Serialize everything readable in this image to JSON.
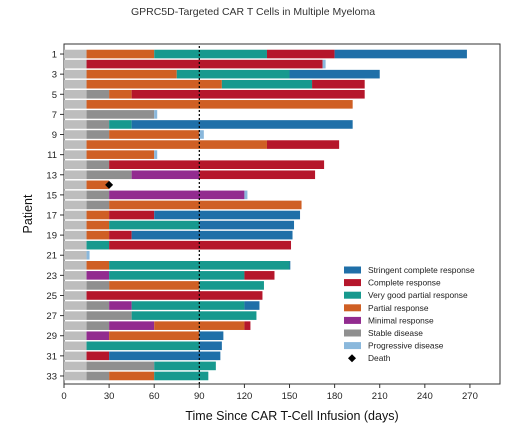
{
  "title": "GPRC5D-Targeted CAR T Cells in Multiple Myeloma",
  "chart_data": {
    "type": "bar",
    "orientation": "horizontal-swimmer",
    "xlabel": "Time Since CAR T-Cell Infusion (days)",
    "ylabel": "Patient",
    "xlim": [
      0,
      290
    ],
    "xticks": [
      0,
      30,
      60,
      90,
      120,
      150,
      180,
      210,
      240,
      270
    ],
    "reference_line": 90,
    "ytick_labels": [
      "1",
      "3",
      "5",
      "7",
      "9",
      "11",
      "13",
      "15",
      "17",
      "19",
      "21",
      "23",
      "25",
      "27",
      "29",
      "31",
      "33"
    ],
    "legend": {
      "placement": "bottom-right",
      "entries": [
        {
          "key": "scr",
          "label": "Stringent complete response"
        },
        {
          "key": "cr",
          "label": "Complete response"
        },
        {
          "key": "vgpr",
          "label": "Very good partial response"
        },
        {
          "key": "pr",
          "label": "Partial response"
        },
        {
          "key": "mr",
          "label": "Minimal response"
        },
        {
          "key": "sd",
          "label": "Stable disease"
        },
        {
          "key": "pd",
          "label": "Progressive disease"
        },
        {
          "key": "death",
          "label": "Death"
        }
      ]
    },
    "colors": {
      "scr": "#1f6fa8",
      "cr": "#b5162b",
      "vgpr": "#17998e",
      "pr": "#cf5f24",
      "mr": "#922b8f",
      "sd": "#8f8f8f",
      "pd": "#8ab8dc",
      "pre": "#bdbdbd",
      "death": "#000000"
    },
    "patients": [
      {
        "id": 1,
        "segments": [
          [
            "pre",
            0,
            15
          ],
          [
            "pr",
            15,
            60
          ],
          [
            "vgpr",
            60,
            135
          ],
          [
            "cr",
            135,
            180
          ],
          [
            "scr",
            180,
            268
          ]
        ]
      },
      {
        "id": 2,
        "segments": [
          [
            "pre",
            0,
            15
          ],
          [
            "cr",
            15,
            172
          ],
          [
            "pd",
            172,
            174
          ]
        ]
      },
      {
        "id": 3,
        "segments": [
          [
            "pre",
            0,
            15
          ],
          [
            "pr",
            15,
            75
          ],
          [
            "vgpr",
            75,
            150
          ],
          [
            "scr",
            150,
            210
          ]
        ]
      },
      {
        "id": 4,
        "segments": [
          [
            "pre",
            0,
            15
          ],
          [
            "pr",
            15,
            105
          ],
          [
            "vgpr",
            105,
            165
          ],
          [
            "cr",
            165,
            200
          ]
        ]
      },
      {
        "id": 5,
        "segments": [
          [
            "pre",
            0,
            15
          ],
          [
            "sd",
            15,
            30
          ],
          [
            "pr",
            30,
            45
          ],
          [
            "cr",
            45,
            200
          ]
        ]
      },
      {
        "id": 6,
        "segments": [
          [
            "pre",
            0,
            15
          ],
          [
            "pr",
            15,
            192
          ]
        ]
      },
      {
        "id": 7,
        "segments": [
          [
            "pre",
            0,
            15
          ],
          [
            "sd",
            15,
            60
          ],
          [
            "pd",
            60,
            62
          ]
        ]
      },
      {
        "id": 8,
        "segments": [
          [
            "pre",
            0,
            15
          ],
          [
            "sd",
            15,
            30
          ],
          [
            "vgpr",
            30,
            45
          ],
          [
            "scr",
            45,
            192
          ]
        ]
      },
      {
        "id": 9,
        "segments": [
          [
            "pre",
            0,
            15
          ],
          [
            "sd",
            15,
            30
          ],
          [
            "pr",
            30,
            90
          ],
          [
            "pd",
            90,
            93
          ]
        ]
      },
      {
        "id": 10,
        "segments": [
          [
            "pre",
            0,
            15
          ],
          [
            "pr",
            15,
            135
          ],
          [
            "cr",
            135,
            183
          ]
        ]
      },
      {
        "id": 11,
        "segments": [
          [
            "pre",
            0,
            15
          ],
          [
            "pr",
            15,
            60
          ],
          [
            "pd",
            60,
            62
          ]
        ]
      },
      {
        "id": 12,
        "segments": [
          [
            "pre",
            0,
            15
          ],
          [
            "sd",
            15,
            30
          ],
          [
            "cr",
            30,
            173
          ]
        ]
      },
      {
        "id": 13,
        "segments": [
          [
            "pre",
            0,
            15
          ],
          [
            "sd",
            15,
            45
          ],
          [
            "mr",
            45,
            90
          ],
          [
            "cr",
            90,
            167
          ]
        ]
      },
      {
        "id": 14,
        "segments": [
          [
            "pre",
            0,
            15
          ],
          [
            "pr",
            15,
            30
          ]
        ],
        "death": 30
      },
      {
        "id": 15,
        "segments": [
          [
            "pre",
            0,
            15
          ],
          [
            "sd",
            15,
            30
          ],
          [
            "mr",
            30,
            120
          ],
          [
            "pd",
            120,
            122
          ]
        ]
      },
      {
        "id": 16,
        "segments": [
          [
            "pre",
            0,
            15
          ],
          [
            "sd",
            15,
            30
          ],
          [
            "pr",
            30,
            158
          ]
        ]
      },
      {
        "id": 17,
        "segments": [
          [
            "pre",
            0,
            15
          ],
          [
            "pr",
            15,
            30
          ],
          [
            "cr",
            30,
            60
          ],
          [
            "scr",
            60,
            157
          ]
        ]
      },
      {
        "id": 18,
        "segments": [
          [
            "pre",
            0,
            15
          ],
          [
            "pr",
            15,
            30
          ],
          [
            "vgpr",
            30,
            90
          ],
          [
            "scr",
            90,
            153
          ]
        ]
      },
      {
        "id": 19,
        "segments": [
          [
            "pre",
            0,
            15
          ],
          [
            "pr",
            15,
            30
          ],
          [
            "cr",
            30,
            45
          ],
          [
            "scr",
            45,
            152
          ]
        ]
      },
      {
        "id": 20,
        "segments": [
          [
            "pre",
            0,
            15
          ],
          [
            "vgpr",
            15,
            30
          ],
          [
            "cr",
            30,
            151
          ]
        ]
      },
      {
        "id": 21,
        "segments": [
          [
            "pre",
            0,
            15
          ],
          [
            "pd",
            15,
            17
          ]
        ]
      },
      {
        "id": 22,
        "segments": [
          [
            "pre",
            0,
            15
          ],
          [
            "pr",
            15,
            30
          ],
          [
            "vgpr",
            30,
            150
          ],
          [
            "scr",
            150,
            148
          ]
        ]
      },
      {
        "id": 23,
        "segments": [
          [
            "pre",
            0,
            15
          ],
          [
            "mr",
            15,
            30
          ],
          [
            "vgpr",
            30,
            120
          ],
          [
            "cr",
            120,
            140
          ]
        ]
      },
      {
        "id": 24,
        "segments": [
          [
            "pre",
            0,
            15
          ],
          [
            "sd",
            15,
            30
          ],
          [
            "pr",
            30,
            90
          ],
          [
            "vgpr",
            90,
            133
          ]
        ]
      },
      {
        "id": 25,
        "segments": [
          [
            "pre",
            0,
            15
          ],
          [
            "cr",
            15,
            132
          ]
        ]
      },
      {
        "id": 26,
        "segments": [
          [
            "pre",
            0,
            15
          ],
          [
            "sd",
            15,
            30
          ],
          [
            "mr",
            30,
            45
          ],
          [
            "vgpr",
            45,
            120
          ],
          [
            "scr",
            120,
            130
          ]
        ]
      },
      {
        "id": 27,
        "segments": [
          [
            "pre",
            0,
            15
          ],
          [
            "sd",
            15,
            45
          ],
          [
            "vgpr",
            45,
            128
          ]
        ]
      },
      {
        "id": 28,
        "segments": [
          [
            "pre",
            0,
            15
          ],
          [
            "sd",
            15,
            30
          ],
          [
            "mr",
            30,
            60
          ],
          [
            "pr",
            60,
            120
          ],
          [
            "cr",
            120,
            124
          ]
        ]
      },
      {
        "id": 29,
        "segments": [
          [
            "pre",
            0,
            15
          ],
          [
            "mr",
            15,
            30
          ],
          [
            "pr",
            30,
            90
          ],
          [
            "scr",
            90,
            106
          ]
        ]
      },
      {
        "id": 30,
        "segments": [
          [
            "pre",
            0,
            15
          ],
          [
            "vgpr",
            15,
            90
          ],
          [
            "scr",
            90,
            105
          ]
        ]
      },
      {
        "id": 31,
        "segments": [
          [
            "pre",
            0,
            15
          ],
          [
            "cr",
            15,
            30
          ],
          [
            "scr",
            30,
            104
          ]
        ]
      },
      {
        "id": 32,
        "segments": [
          [
            "pre",
            0,
            15
          ],
          [
            "sd",
            15,
            60
          ],
          [
            "vgpr",
            60,
            101
          ]
        ]
      },
      {
        "id": 33,
        "segments": [
          [
            "pre",
            0,
            15
          ],
          [
            "sd",
            15,
            30
          ],
          [
            "pr",
            30,
            60
          ],
          [
            "vgpr",
            60,
            96
          ]
        ]
      }
    ]
  }
}
